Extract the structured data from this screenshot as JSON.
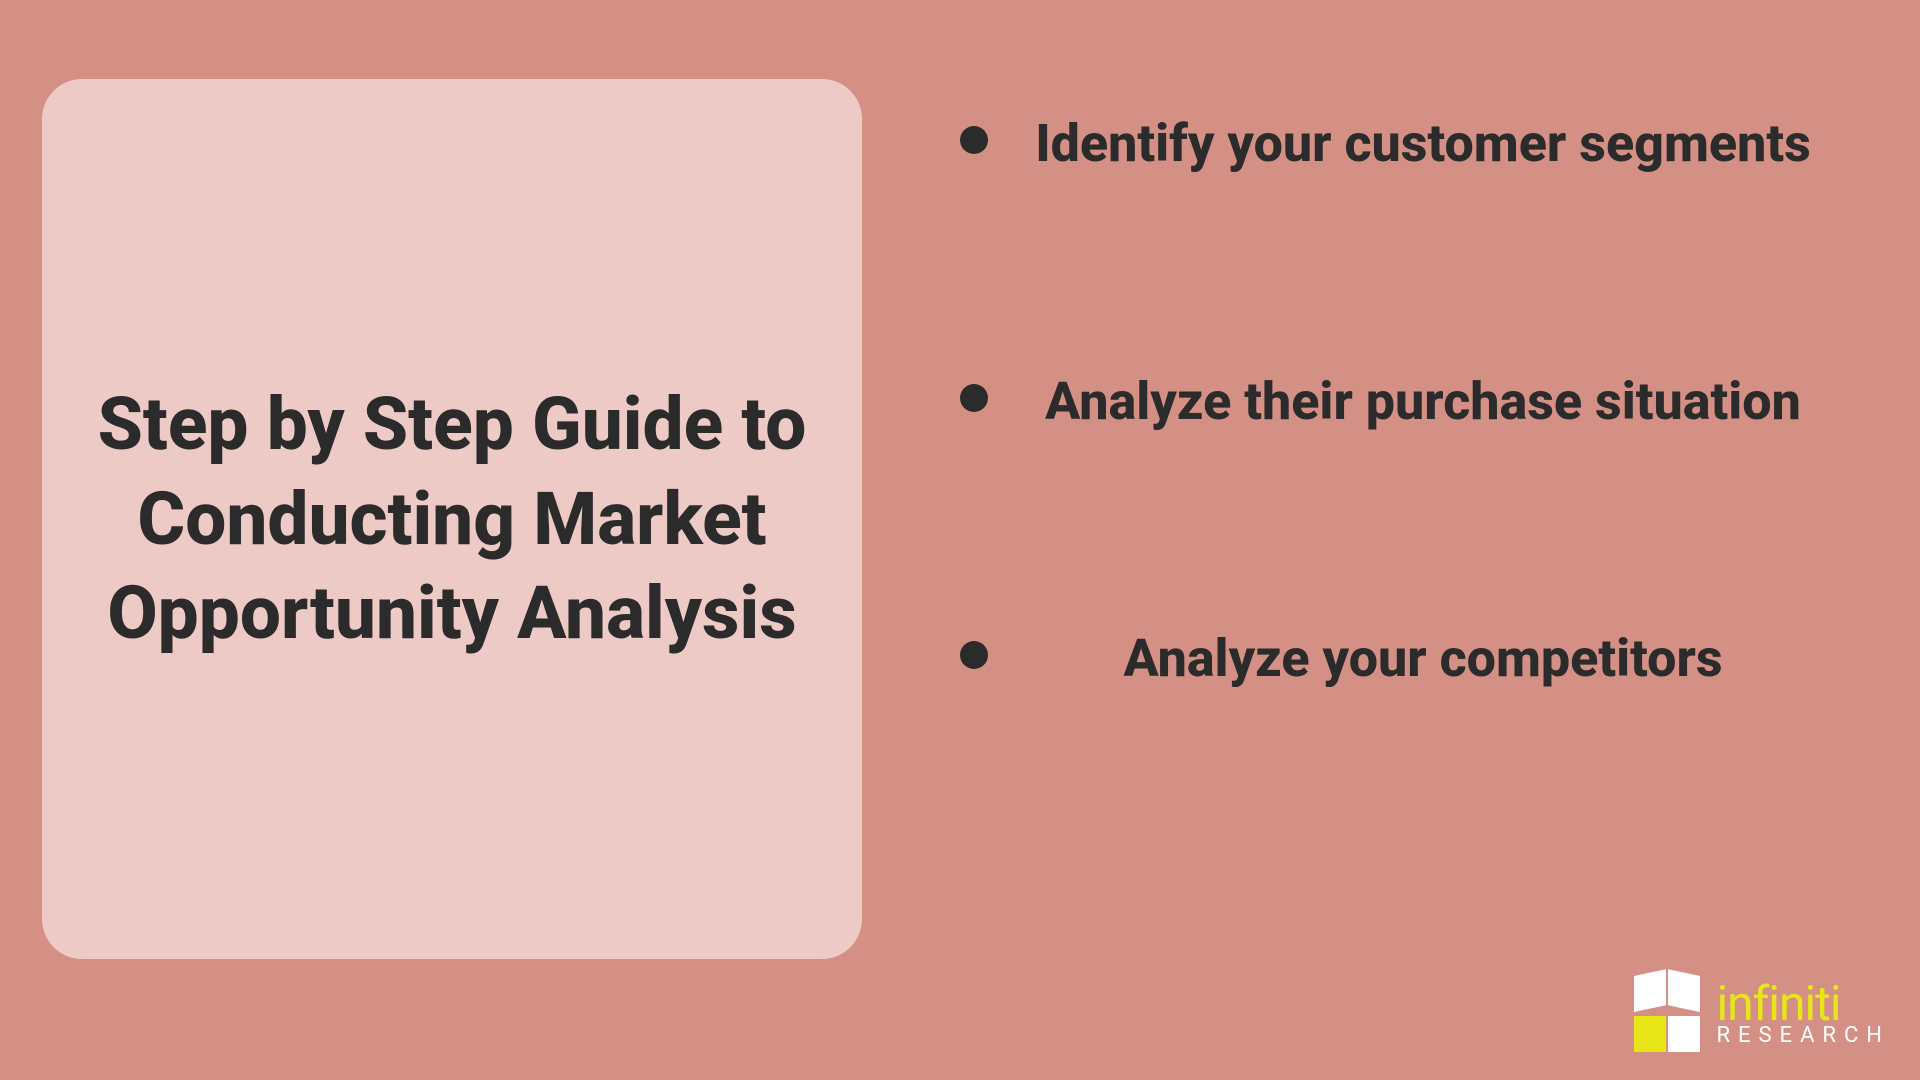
{
  "colors": {
    "background": "#d59086",
    "title_box_bg": "#edcac5",
    "text_dark": "#2b2b2b",
    "logo_yellow": "#e6e619",
    "logo_white": "#ffffff"
  },
  "typography": {
    "title_fontsize": 73,
    "title_weight": 800,
    "bullet_fontsize": 52,
    "bullet_weight": 800,
    "logo_main_fontsize": 48,
    "logo_sub_fontsize": 22
  },
  "layout": {
    "title_box_radius": 40,
    "bullet_dot_size": 28,
    "bullet_spacing": 190
  },
  "title": "Step by Step Guide to Conducting Market Opportunity Analysis",
  "bullets": [
    "Identify your customer segments",
    "Analyze their purchase situation",
    "Analyze your competitors"
  ],
  "logo": {
    "word_main": "infiniti",
    "word_sub": "RESEARCH"
  }
}
